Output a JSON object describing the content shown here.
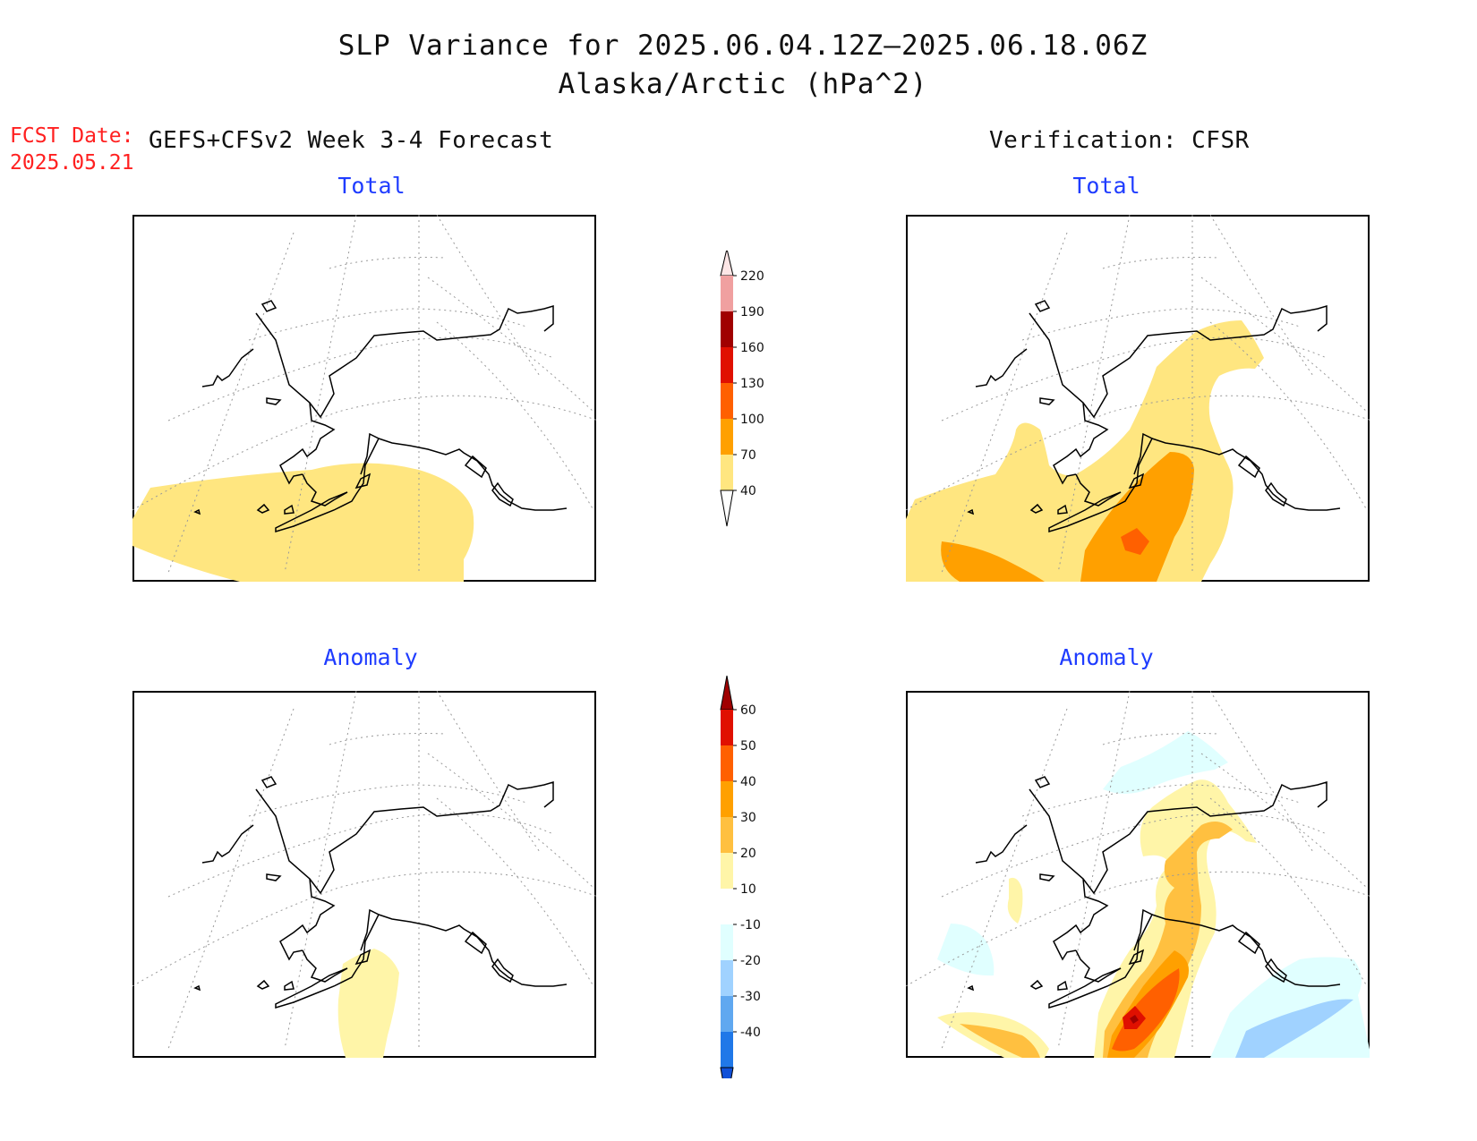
{
  "title": {
    "line1": "SLP Variance for 2025.06.04.12Z–2025.06.18.06Z",
    "line2": "Alaska/Arctic (hPa^2)"
  },
  "fcst": {
    "label": "FCST Date:",
    "date": "2025.05.21"
  },
  "left_header": "GEFS+CFSv2 Week 3-4 Forecast",
  "right_header": "Verification: CFSR",
  "panels": {
    "forecast_total": "Total",
    "verification_total": "Total",
    "forecast_anomaly": "Anomaly",
    "verification_anomaly": "Anomaly"
  },
  "colorbars": {
    "total": {
      "labels": [
        "40",
        "70",
        "100",
        "130",
        "160",
        "190",
        "220"
      ],
      "colors": [
        "#ffe680",
        "#ffa000",
        "#ff6000",
        "#e01000",
        "#a00000",
        "#f0a0a0",
        "#fde6e6"
      ]
    },
    "anomaly": {
      "labels": [
        "60",
        "50",
        "40",
        "30",
        "20",
        "10",
        "-10",
        "-20",
        "-30",
        "-40"
      ],
      "colors": [
        "#a00000",
        "#e01000",
        "#ff6000",
        "#ffa000",
        "#ffc040",
        "#fff5a8",
        "#ffffff",
        "#e0ffff",
        "#a0d2ff",
        "#60a8f0",
        "#2078e8",
        "#1050d8"
      ]
    }
  },
  "colors": {
    "land_outline": "#000000",
    "graticule": "#999999",
    "subtitle": "#1f3cff",
    "fcst": "#ff2020"
  }
}
